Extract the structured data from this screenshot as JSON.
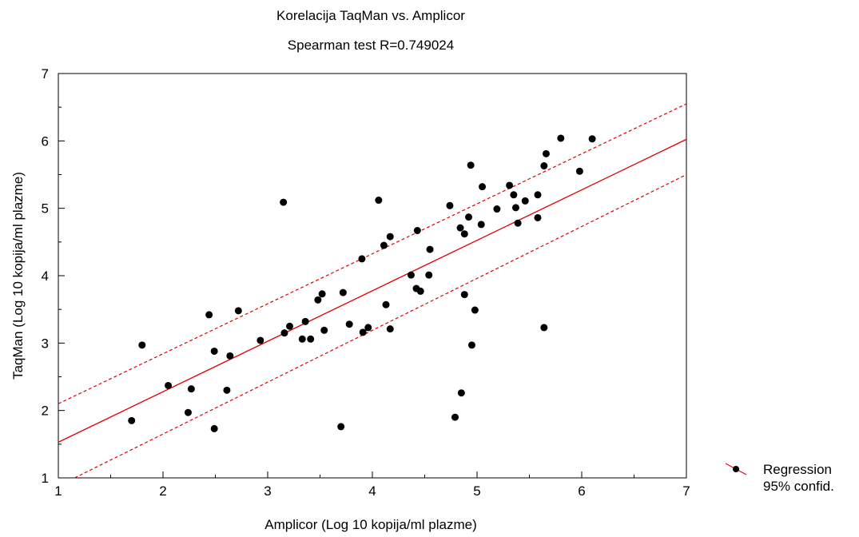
{
  "chart_data": {
    "type": "scatter",
    "title": "Korelacija TaqMan vs. Amplicor",
    "subtitle": "Spearman test R=0.749024",
    "xlabel": "Amplicor (Log 10 kopija/ml plazme)",
    "ylabel": "TaqMan (Log 10 kopija/ml plazme)",
    "xlim": [
      1,
      7
    ],
    "ylim": [
      1,
      7
    ],
    "x_ticks": [
      "1",
      "2",
      "3",
      "4",
      "5",
      "6",
      "7"
    ],
    "y_ticks": [
      "1",
      "2",
      "3",
      "4",
      "5",
      "6",
      "7"
    ],
    "grid": false,
    "legend_position": "bottom-right",
    "legend": [
      "Regression",
      "95% confid."
    ],
    "colors": {
      "points": "#000000",
      "regression": "#e00000",
      "confidence": "#e00000"
    },
    "regression": {
      "intercept": 0.78,
      "slope": 0.749
    },
    "confidence_band": {
      "upper_at_xmin": 2.1,
      "upper_at_xmax": 6.55,
      "lower_at_xmin": 0.88,
      "lower_at_xmax": 5.5
    },
    "points": [
      [
        1.7,
        1.85
      ],
      [
        1.8,
        2.97
      ],
      [
        2.05,
        2.37
      ],
      [
        2.24,
        1.97
      ],
      [
        2.27,
        2.32
      ],
      [
        2.44,
        3.42
      ],
      [
        2.49,
        2.88
      ],
      [
        2.49,
        1.73
      ],
      [
        2.61,
        2.3
      ],
      [
        2.64,
        2.81
      ],
      [
        2.72,
        3.48
      ],
      [
        2.93,
        3.04
      ],
      [
        3.15,
        5.09
      ],
      [
        3.16,
        3.15
      ],
      [
        3.21,
        3.25
      ],
      [
        3.33,
        3.06
      ],
      [
        3.36,
        3.32
      ],
      [
        3.41,
        3.06
      ],
      [
        3.48,
        3.64
      ],
      [
        3.52,
        3.73
      ],
      [
        3.54,
        3.19
      ],
      [
        3.7,
        1.76
      ],
      [
        3.72,
        3.75
      ],
      [
        3.78,
        3.28
      ],
      [
        3.9,
        4.25
      ],
      [
        3.91,
        3.16
      ],
      [
        3.96,
        3.23
      ],
      [
        4.06,
        5.12
      ],
      [
        4.11,
        4.45
      ],
      [
        4.13,
        3.57
      ],
      [
        4.17,
        4.58
      ],
      [
        4.17,
        3.21
      ],
      [
        4.37,
        4.01
      ],
      [
        4.42,
        3.81
      ],
      [
        4.43,
        4.67
      ],
      [
        4.46,
        3.77
      ],
      [
        4.54,
        4.01
      ],
      [
        4.55,
        4.39
      ],
      [
        4.74,
        5.04
      ],
      [
        4.79,
        1.9
      ],
      [
        4.84,
        4.71
      ],
      [
        4.85,
        2.26
      ],
      [
        4.88,
        4.62
      ],
      [
        4.88,
        3.72
      ],
      [
        4.92,
        4.87
      ],
      [
        4.94,
        5.64
      ],
      [
        4.95,
        2.97
      ],
      [
        4.98,
        3.49
      ],
      [
        5.04,
        4.76
      ],
      [
        5.05,
        5.32
      ],
      [
        5.19,
        4.99
      ],
      [
        5.31,
        5.34
      ],
      [
        5.35,
        5.2
      ],
      [
        5.37,
        5.01
      ],
      [
        5.39,
        4.78
      ],
      [
        5.46,
        5.11
      ],
      [
        5.58,
        5.2
      ],
      [
        5.58,
        4.86
      ],
      [
        5.64,
        5.63
      ],
      [
        5.64,
        3.23
      ],
      [
        5.66,
        5.81
      ],
      [
        5.8,
        6.04
      ],
      [
        5.98,
        5.55
      ],
      [
        6.1,
        6.03
      ]
    ]
  }
}
